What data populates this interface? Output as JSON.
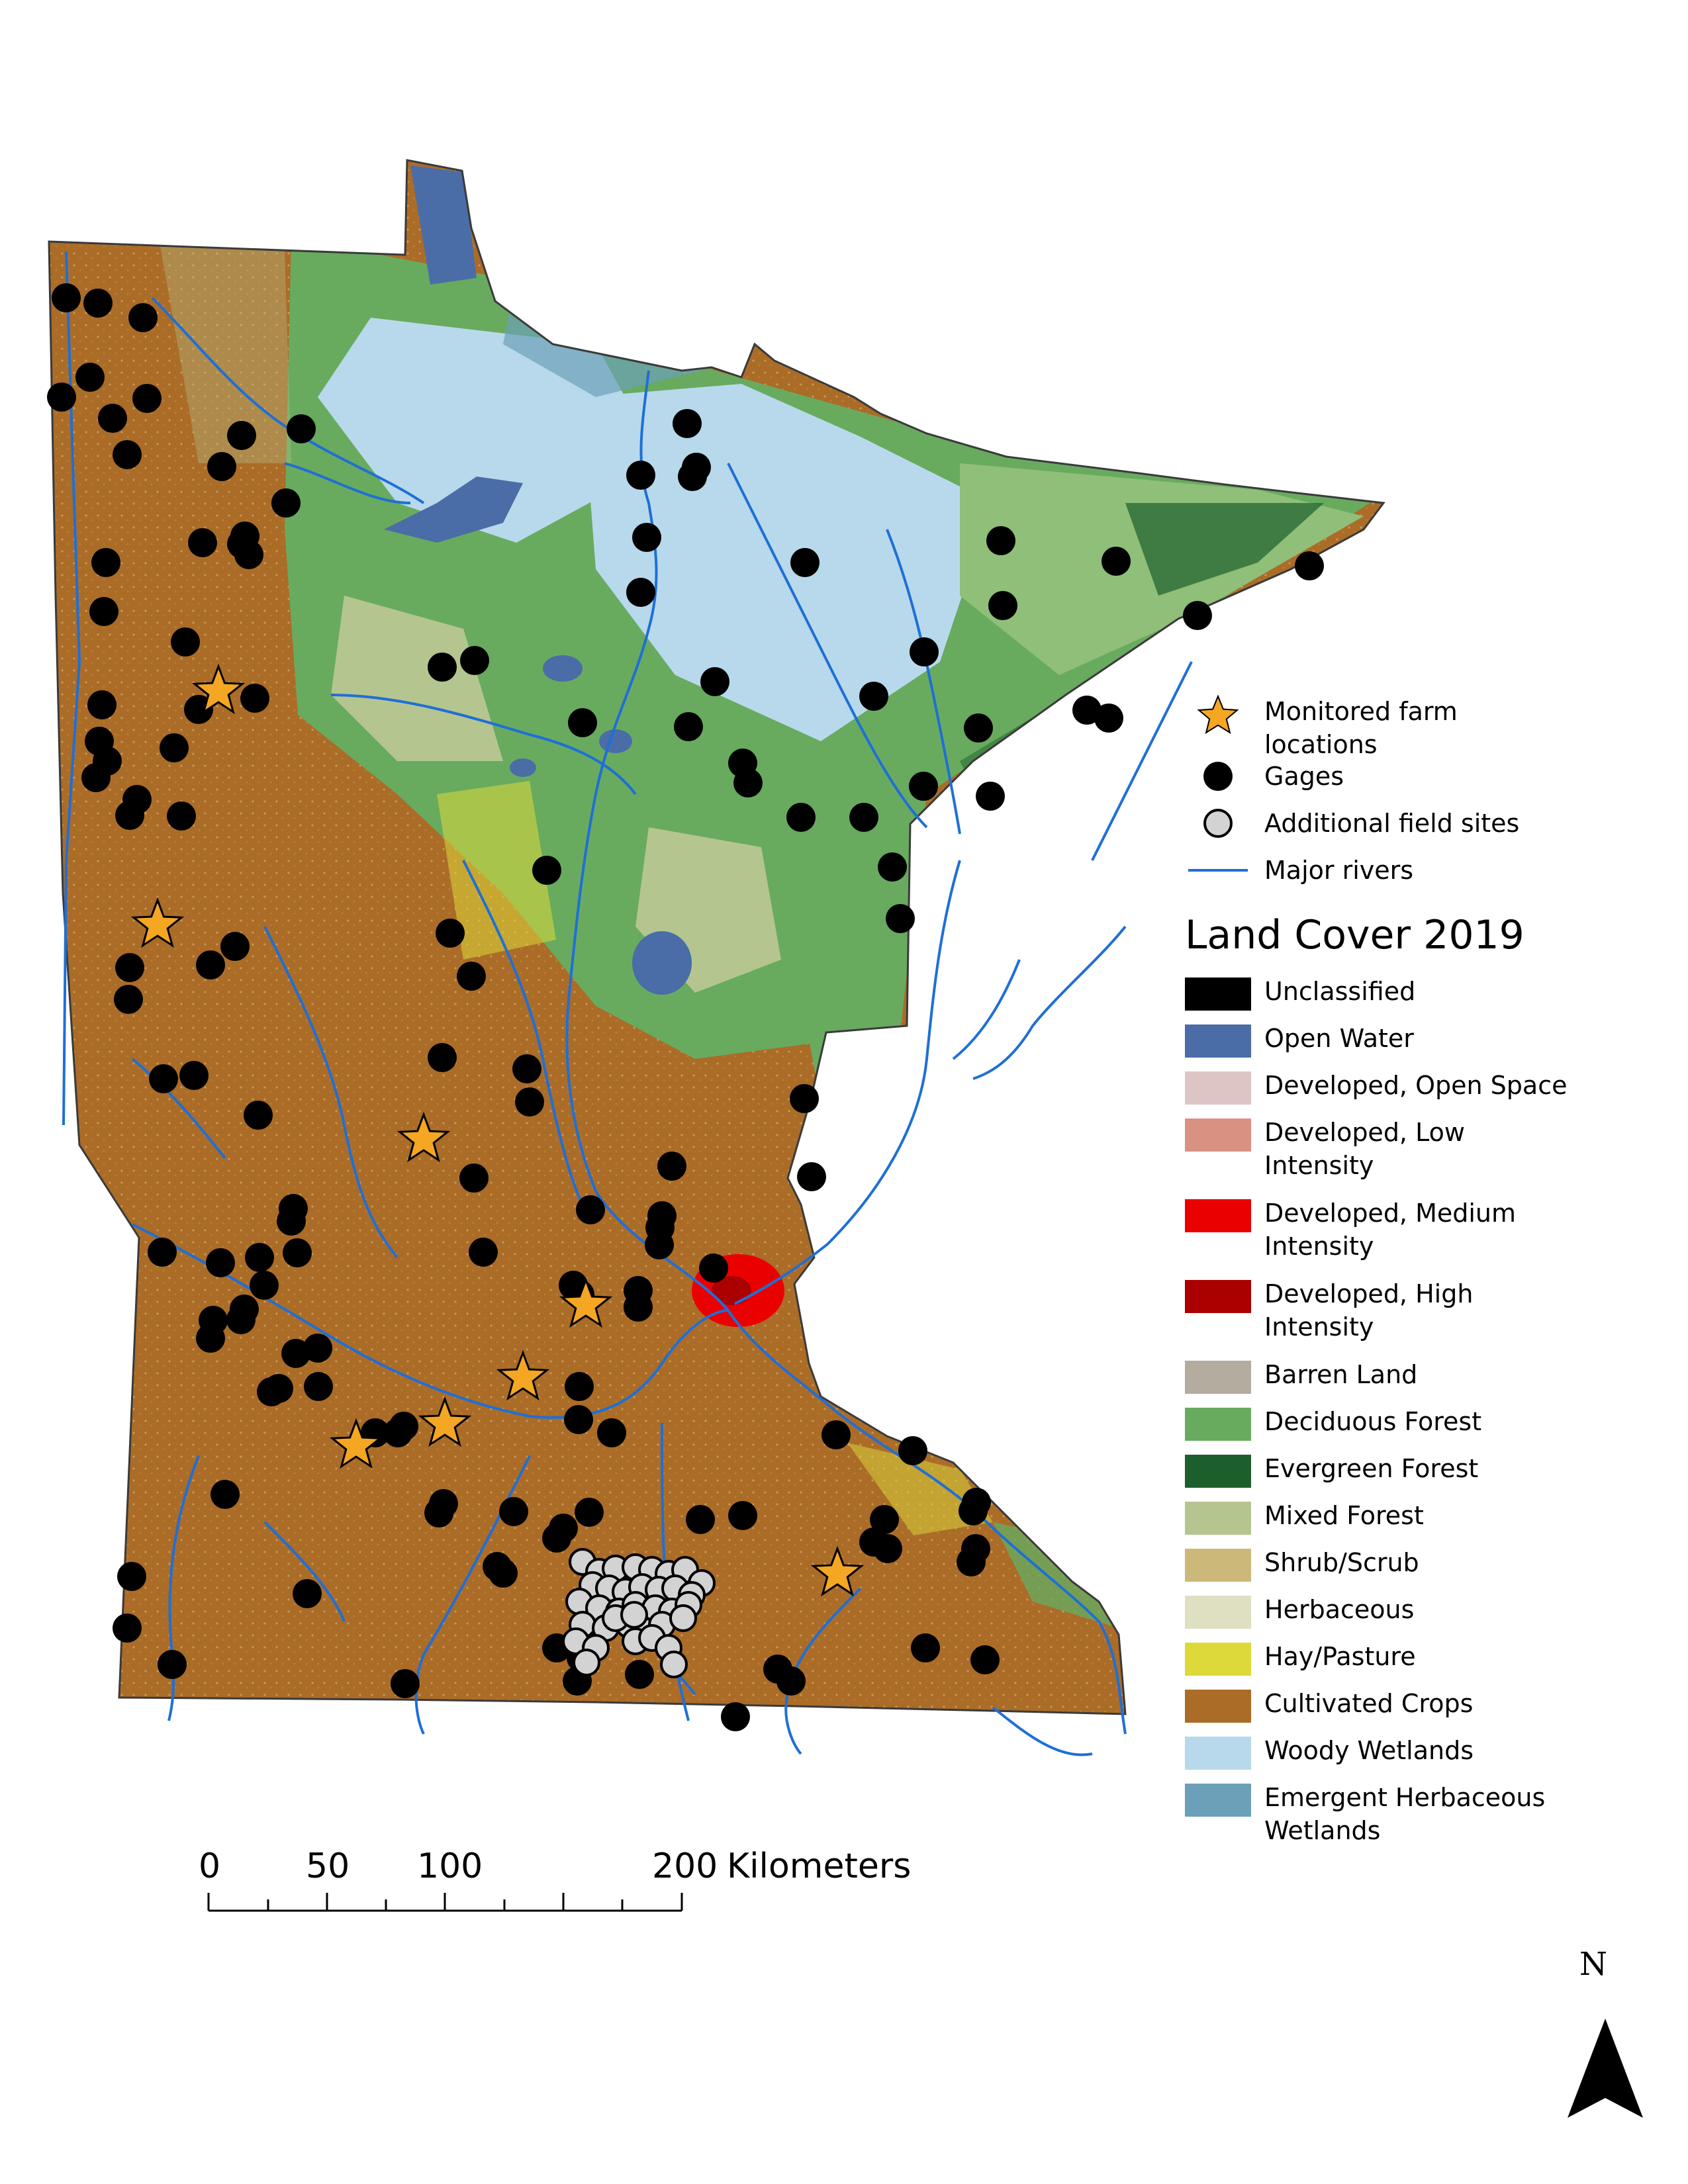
{
  "legend": {
    "farm_label_1": "Monitored farm",
    "farm_label_2": "locations",
    "gages_label": "Gages",
    "field_sites_label": "Additional field sites",
    "rivers_label": "Major rivers",
    "land_cover_title": "Land Cover 2019",
    "classes": [
      {
        "label_1": "Unclassified",
        "label_2": "",
        "color": "#000000"
      },
      {
        "label_1": "Open Water",
        "label_2": "",
        "color": "#4a6da7"
      },
      {
        "label_1": "Developed, Open Space",
        "label_2": "",
        "color": "#dec5c5"
      },
      {
        "label_1": "Developed, Low",
        "label_2": "Intensity",
        "color": "#d99282"
      },
      {
        "label_1": "Developed, Medium",
        "label_2": "Intensity",
        "color": "#eb0000"
      },
      {
        "label_1": "Developed, High",
        "label_2": "Intensity",
        "color": "#ab0000"
      },
      {
        "label_1": "Barren Land",
        "label_2": "",
        "color": "#b3ac9f"
      },
      {
        "label_1": "Deciduous Forest",
        "label_2": "",
        "color": "#68ab5f"
      },
      {
        "label_1": "Evergreen Forest",
        "label_2": "",
        "color": "#1c5f2c"
      },
      {
        "label_1": "Mixed Forest",
        "label_2": "",
        "color": "#b5c58f"
      },
      {
        "label_1": "Shrub/Scrub",
        "label_2": "",
        "color": "#ccb879"
      },
      {
        "label_1": "Herbaceous",
        "label_2": "",
        "color": "#dfdfc2"
      },
      {
        "label_1": "Hay/Pasture",
        "label_2": "",
        "color": "#dcd939"
      },
      {
        "label_1": "Cultivated Crops",
        "label_2": "",
        "color": "#ab6c28"
      },
      {
        "label_1": "Woody Wetlands",
        "label_2": "",
        "color": "#b8d9eb"
      },
      {
        "label_1": "Emergent Herbaceous",
        "label_2": "Wetlands",
        "color": "#6c9fb8"
      }
    ]
  },
  "scale_bar": {
    "ticks": [
      "0",
      "50",
      "100",
      "200"
    ],
    "unit": "Kilometers"
  },
  "north_arrow": {
    "label": "N"
  },
  "colors": {
    "gage": "#000000",
    "farm_star": "#f5a623",
    "field_site": "#d3d3d3",
    "river": "#1f6fd6"
  }
}
